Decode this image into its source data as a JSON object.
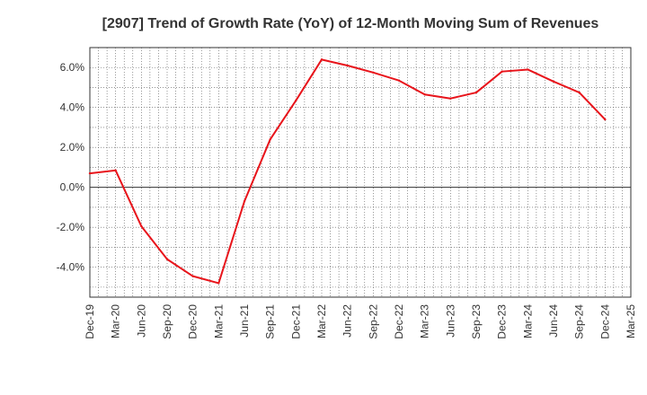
{
  "chart_data": {
    "type": "line",
    "title": "[2907]  Trend of Growth Rate (YoY) of 12-Month Moving Sum of Revenues",
    "xlabel": "",
    "ylabel": "",
    "x_tick_labels": [
      "Dec-19",
      "Mar-20",
      "Jun-20",
      "Sep-20",
      "Dec-20",
      "Mar-21",
      "Jun-21",
      "Sep-21",
      "Dec-21",
      "Mar-22",
      "Jun-22",
      "Sep-22",
      "Dec-22",
      "Mar-23",
      "Jun-23",
      "Sep-23",
      "Dec-23",
      "Mar-24",
      "Jun-24",
      "Sep-24",
      "Dec-24",
      "Mar-25"
    ],
    "y_tick_labels": [
      "-4.0%",
      "-2.0%",
      "0.0%",
      "2.0%",
      "4.0%",
      "6.0%"
    ],
    "y_ticks": [
      -4,
      -2,
      0,
      2,
      4,
      6
    ],
    "ylim": [
      -5.5,
      7.0
    ],
    "grid": true,
    "series": [
      {
        "color": "#e8141b",
        "x": [
          "Dec-19",
          "Mar-20",
          "Jun-20",
          "Sep-20",
          "Dec-20",
          "Mar-21",
          "Jun-21",
          "Sep-21",
          "Dec-21",
          "Mar-22",
          "Jun-22",
          "Sep-22",
          "Dec-22",
          "Mar-23",
          "Jun-23",
          "Sep-23",
          "Dec-23",
          "Mar-24",
          "Jun-24",
          "Sep-24",
          "Dec-24"
        ],
        "values": [
          0.7,
          0.85,
          -1.95,
          -3.6,
          -4.45,
          -4.8,
          -0.7,
          2.4,
          4.35,
          6.4,
          6.1,
          5.75,
          5.35,
          4.65,
          4.45,
          4.75,
          5.8,
          5.9,
          5.3,
          4.75,
          3.4
        ]
      }
    ]
  }
}
